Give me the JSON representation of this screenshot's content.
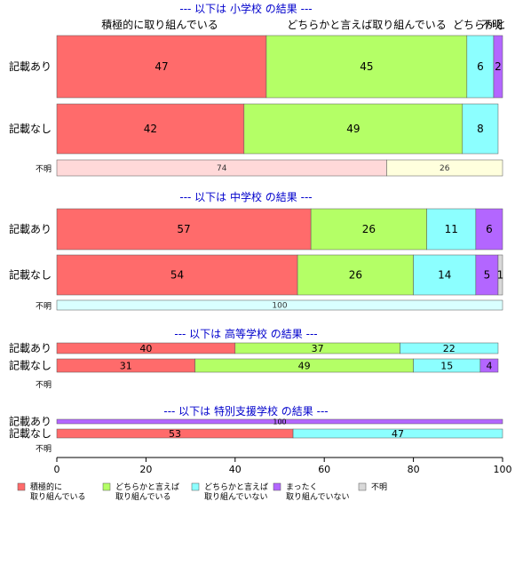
{
  "chart_data": {
    "type": "bar",
    "orientation": "horizontal",
    "stacked": true,
    "xlim": [
      0,
      100
    ],
    "xticks": [
      "0",
      "20",
      "40",
      "60",
      "80",
      "100"
    ],
    "colors": {
      "positive": "#ff6b6b",
      "somewhat_positive": "#b4ff66",
      "somewhat_negative": "#8cffff",
      "negative": "#b366ff",
      "unknown": "#d9d9d9",
      "unknown_row_a": "#ffd9d9",
      "unknown_row_b": "#ffffdd",
      "unknown_row_c": "#d9ffff",
      "section_title": "#0000cc"
    },
    "header_labels": [
      "積極的に取り組んでいる",
      "どちらかと言えば取り組んでいる",
      "どちらかと",
      "不明"
    ],
    "legend": [
      {
        "lines": [
          "積極的に",
          "取り組んでいる"
        ],
        "color": "#ff6b6b"
      },
      {
        "lines": [
          "どちらかと言えば",
          "取り組んでいる"
        ],
        "color": "#b4ff66"
      },
      {
        "lines": [
          "どちらかと言えば",
          "取り組んでいない"
        ],
        "color": "#8cffff"
      },
      {
        "lines": [
          "まったく",
          "取り組んでいない"
        ],
        "color": "#b366ff"
      },
      {
        "lines": [
          "不明"
        ],
        "color": "#d9d9d9"
      }
    ],
    "sections": [
      {
        "title": "--- 以下は 小学校 の結果 ---",
        "rows": [
          {
            "label": "記載あり",
            "values": [
              47,
              45,
              6,
              2,
              0
            ]
          },
          {
            "label": "記載なし",
            "values": [
              42,
              49,
              8,
              0,
              0
            ]
          }
        ],
        "unknown": {
          "label": "不明",
          "segments": [
            {
              "value": 74,
              "color": "#ffd9d9"
            },
            {
              "value": 26,
              "color": "#ffffdd"
            }
          ]
        }
      },
      {
        "title": "--- 以下は 中学校 の結果 ---",
        "rows": [
          {
            "label": "記載あり",
            "values": [
              57,
              26,
              11,
              6,
              0
            ]
          },
          {
            "label": "記載なし",
            "values": [
              54,
              26,
              14,
              5,
              1
            ]
          }
        ],
        "unknown": {
          "label": "不明",
          "segments": [
            {
              "value": 100,
              "color": "#d9ffff"
            }
          ]
        }
      },
      {
        "title": "--- 以下は 高等学校 の結果 ---",
        "rows": [
          {
            "label": "記載あり",
            "values": [
              40,
              37,
              22,
              0,
              0
            ]
          },
          {
            "label": "記載なし",
            "values": [
              31,
              49,
              15,
              4,
              0
            ]
          }
        ],
        "unknown": {
          "label": "不明",
          "segments": []
        }
      },
      {
        "title": "--- 以下は 特別支援学校 の結果 ---",
        "rows": [
          {
            "label": "記載あり",
            "values": [
              0,
              0,
              0,
              100,
              0
            ]
          },
          {
            "label": "記載なし",
            "values": [
              53,
              0,
              47,
              0,
              0
            ]
          }
        ],
        "unknown": {
          "label": "不明",
          "segments": []
        }
      }
    ]
  }
}
